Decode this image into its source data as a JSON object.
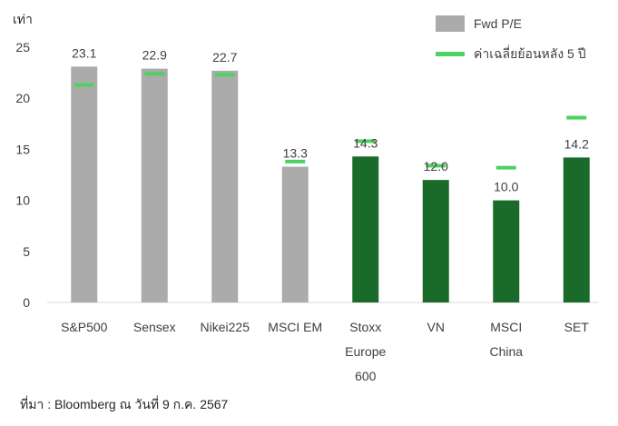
{
  "chart_data": {
    "type": "bar",
    "ylabel": "เท่า",
    "ylim": [
      0,
      25
    ],
    "yticks": [
      0,
      5,
      10,
      15,
      20,
      25
    ],
    "grid": false,
    "legend_position": "top-right",
    "categories": [
      [
        "S&P500"
      ],
      [
        "Sensex"
      ],
      [
        "Nikei225"
      ],
      [
        "MSCI EM"
      ],
      [
        "Stoxx",
        "Europe",
        "600"
      ],
      [
        "VN"
      ],
      [
        "MSCI",
        "China"
      ],
      [
        "SET"
      ]
    ],
    "series": [
      {
        "name": "Fwd P/E",
        "values": [
          23.1,
          22.9,
          22.7,
          13.3,
          14.3,
          12.0,
          10.0,
          14.2
        ],
        "labels": [
          "23.1",
          "22.9",
          "22.7",
          "13.3",
          "14.3",
          "12.0",
          "10.0",
          "14.2"
        ],
        "colors": [
          "#ababab",
          "#ababab",
          "#ababab",
          "#ababab",
          "#1a6b2a",
          "#1a6b2a",
          "#1a6b2a",
          "#1a6b2a"
        ]
      },
      {
        "name": "ค่าเฉลี่ยย้อนหลัง 5 ปี",
        "values": [
          21.3,
          22.4,
          22.3,
          13.8,
          15.8,
          13.4,
          13.2,
          18.1
        ],
        "color": "#4fd162"
      }
    ],
    "legend_swatch_color": "#ababab"
  },
  "source_note": "ที่มา : Bloomberg ณ วันที่ 9 ก.ค. 2567"
}
